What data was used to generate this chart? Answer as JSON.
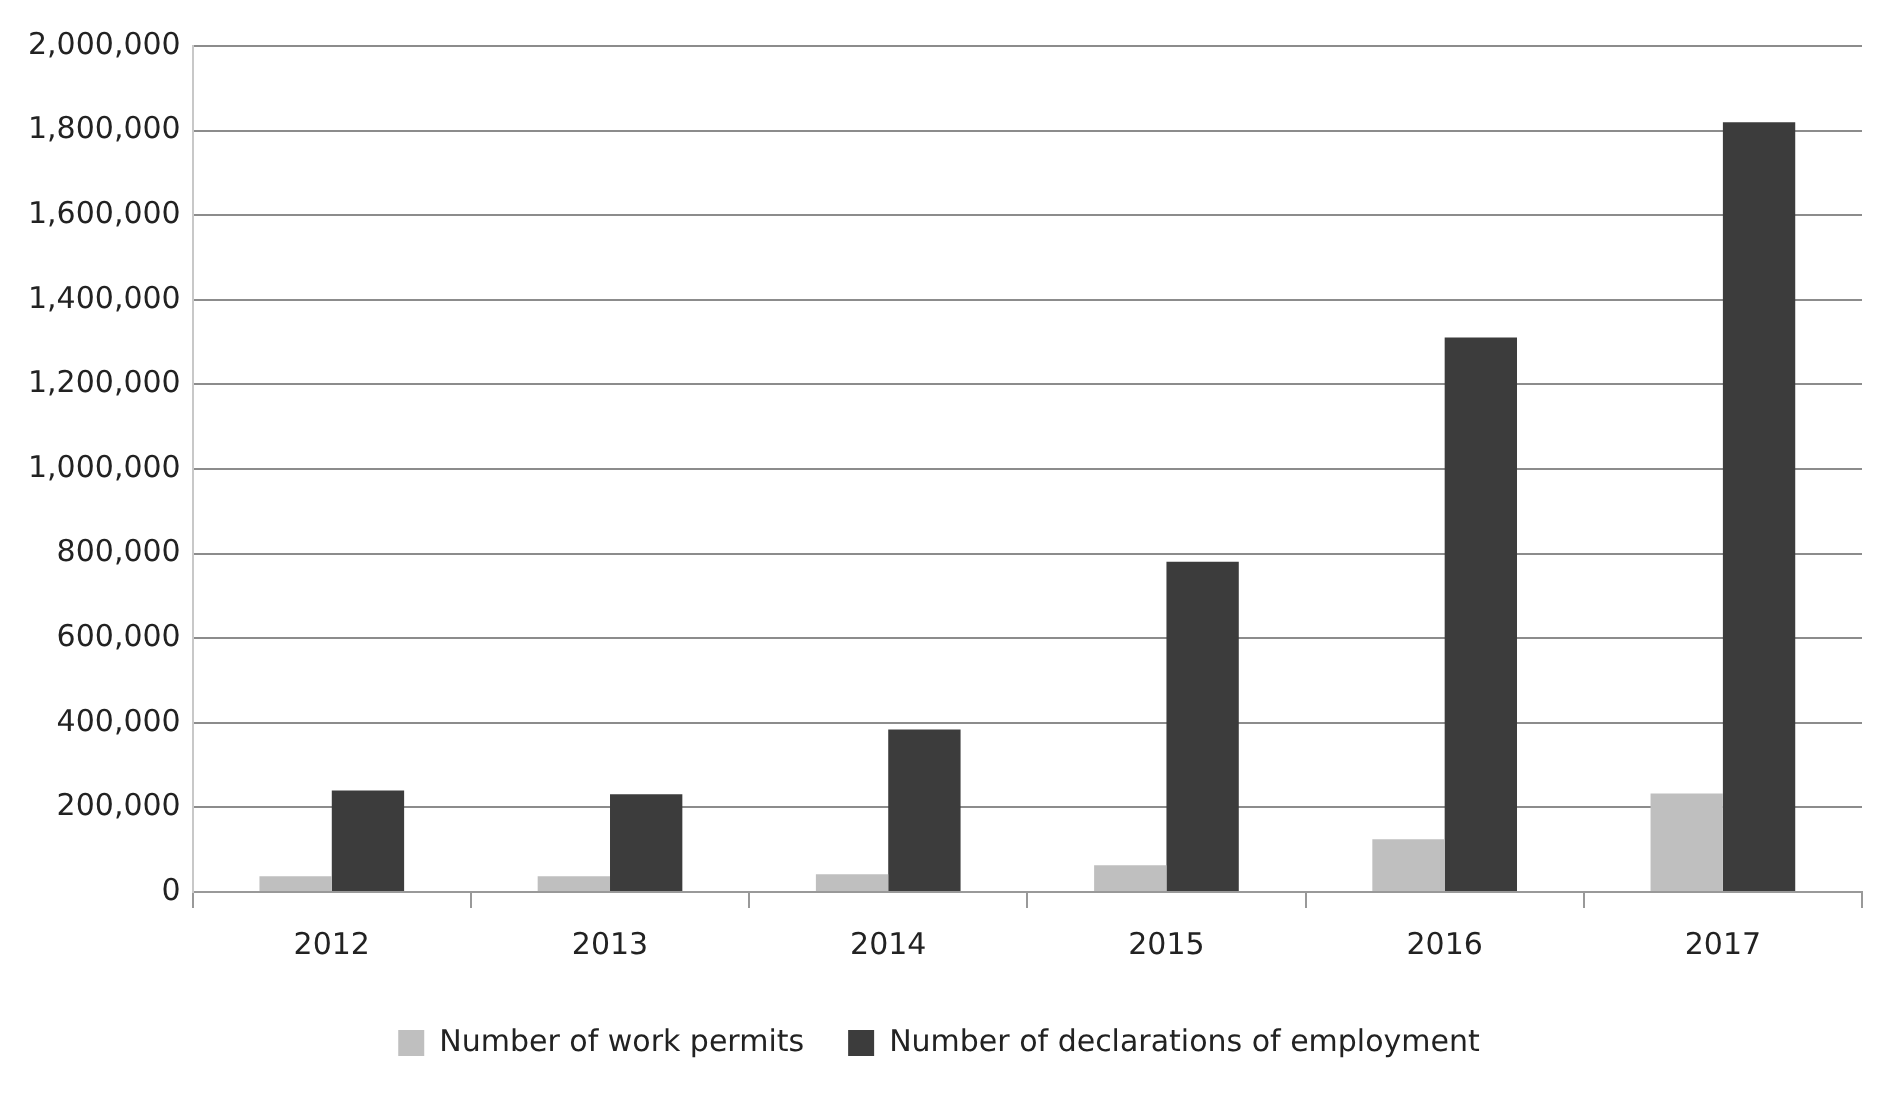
{
  "chart_data": {
    "type": "bar",
    "categories": [
      "2012",
      "2013",
      "2014",
      "2015",
      "2016",
      "2017"
    ],
    "series": [
      {
        "name": "Number of work permits",
        "color": "#bfbfbf",
        "values": [
          37000,
          37000,
          42000,
          63000,
          125000,
          233000
        ]
      },
      {
        "name": "Number of declarations of employment",
        "color": "#3c3c3c",
        "values": [
          240000,
          231000,
          384000,
          781000,
          1311000,
          1820000
        ]
      }
    ],
    "ylim": [
      0,
      2000000
    ],
    "yticks": [
      0,
      {
        "value": 200000,
        "label": "200,000"
      },
      {
        "value": 400000,
        "label": "400,000"
      },
      {
        "value": 600000,
        "label": "600,000"
      },
      {
        "value": 800000,
        "label": "800,000"
      },
      {
        "value": 1000000,
        "label": "1,000,000"
      },
      {
        "value": 1200000,
        "label": "1,200,000"
      },
      {
        "value": 1400000,
        "label": "1,400,000"
      },
      {
        "value": 1600000,
        "label": "1,600,000"
      },
      {
        "value": 1800000,
        "label": "1,800,000"
      },
      {
        "value": 2000000,
        "label": "2,000,000"
      }
    ],
    "grid": "y",
    "legend": "bottom"
  }
}
